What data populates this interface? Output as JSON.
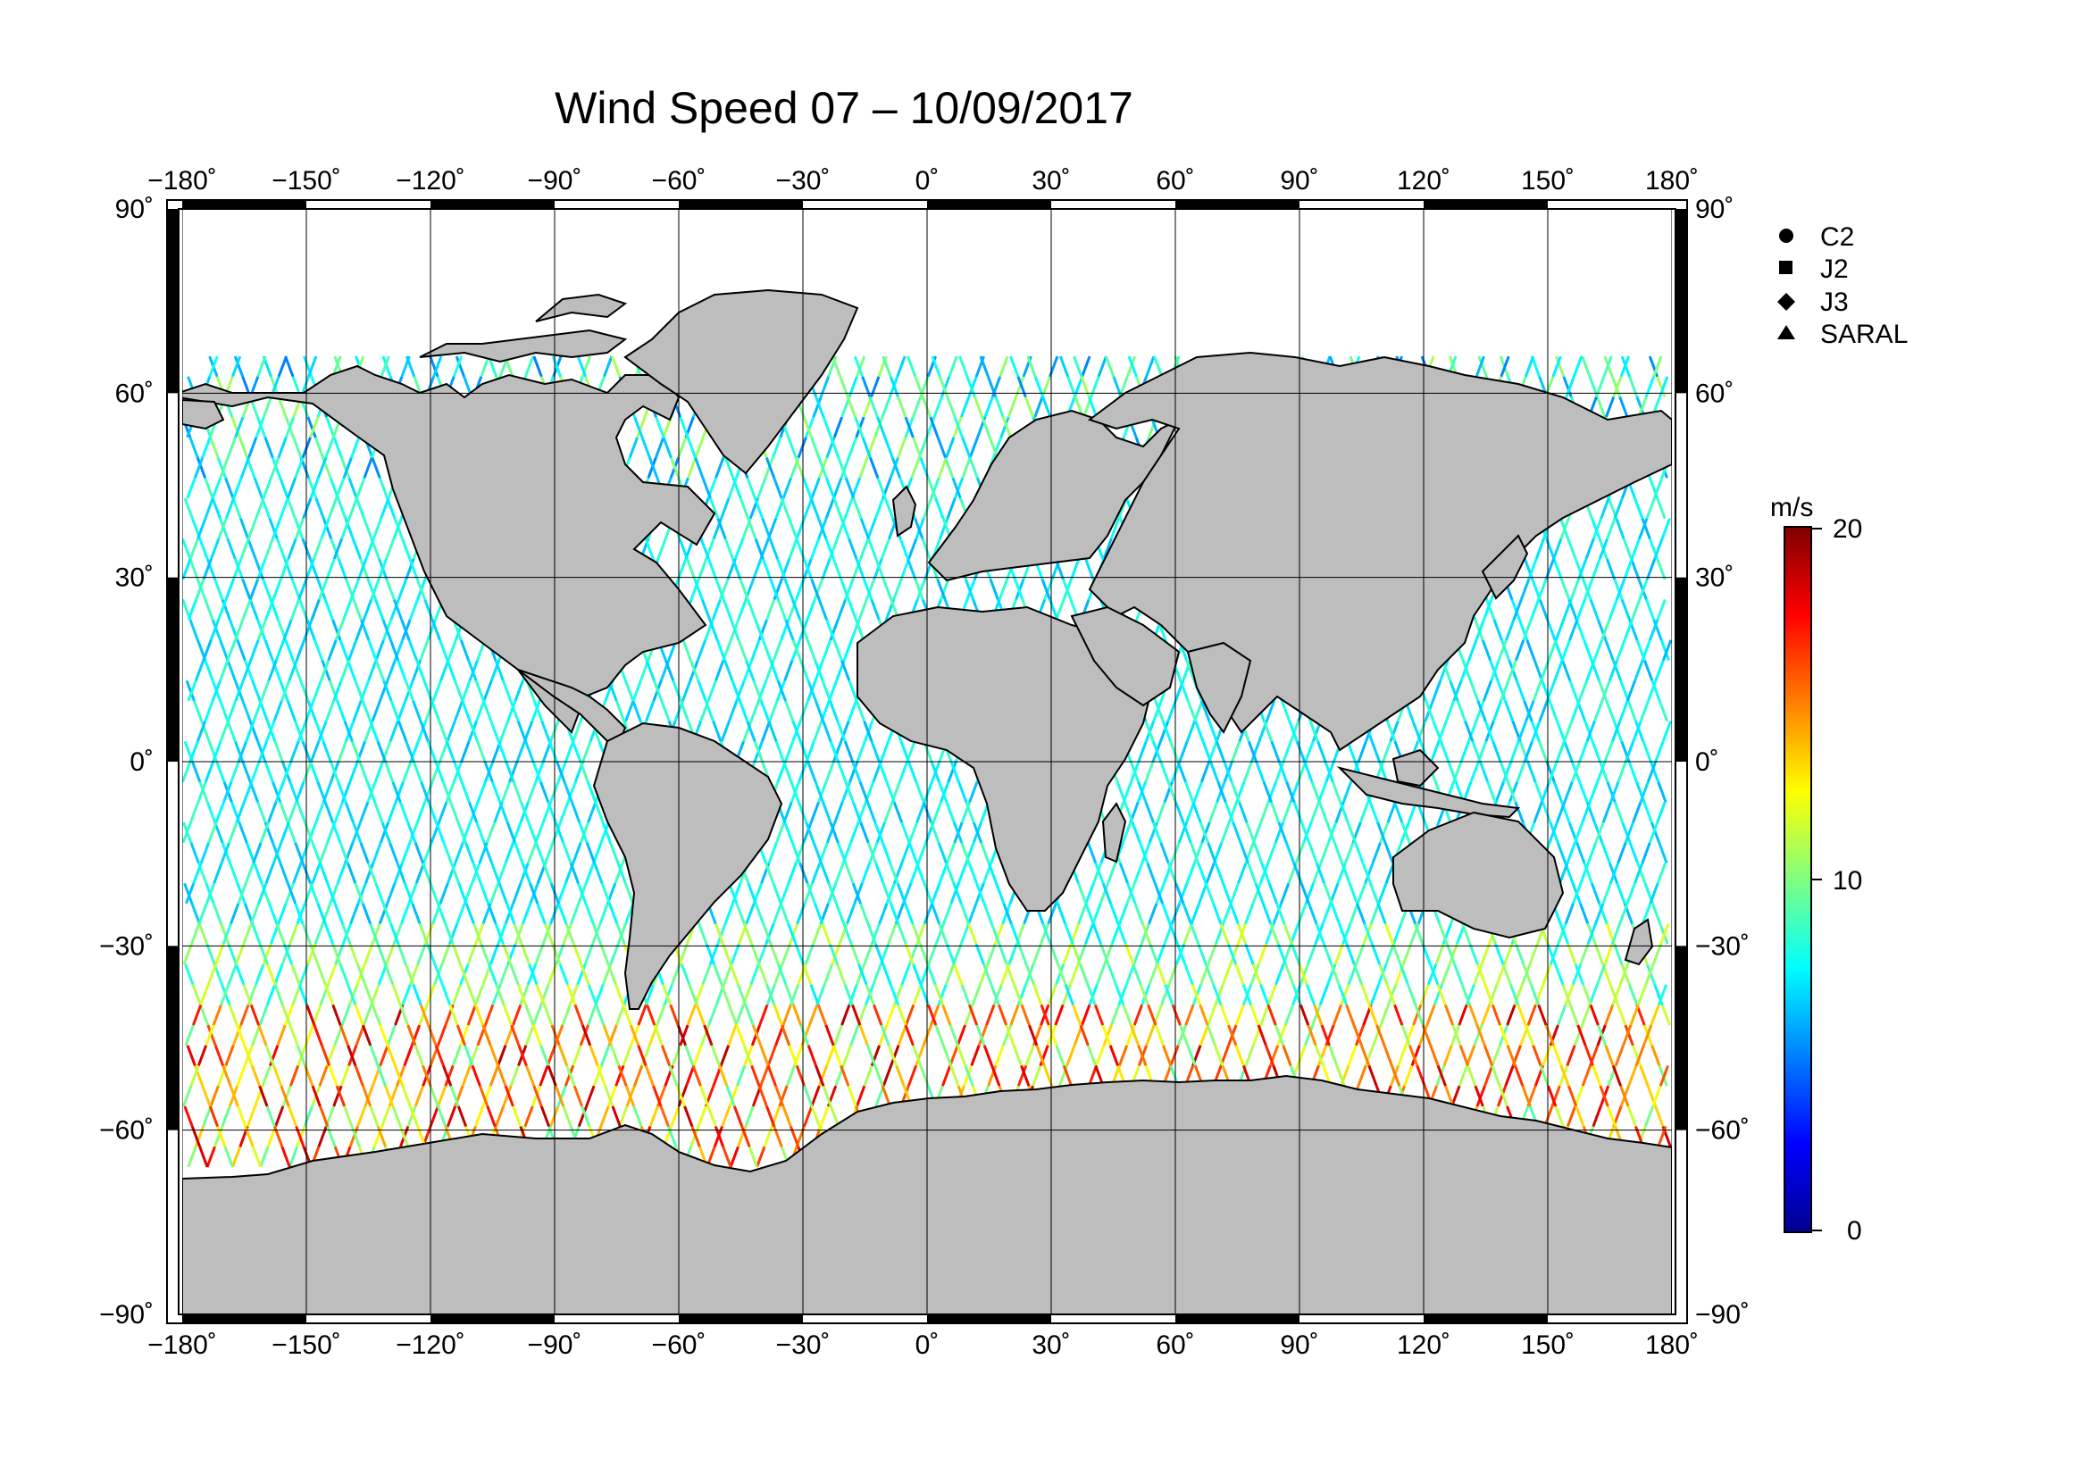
{
  "title": "Wind Speed 07 – 10/09/2017",
  "colors": {
    "land": "#bdbdbd",
    "coast": "#000000",
    "grid": "#000000",
    "background": "#ffffff"
  },
  "axes": {
    "lon_ticks": [
      "−180˚",
      "−150˚",
      "−120˚",
      "−90˚",
      "−60˚",
      "−30˚",
      "0˚",
      "30˚",
      "60˚",
      "90˚",
      "120˚",
      "150˚",
      "180˚"
    ],
    "lat_ticks_left": [
      "90˚",
      "60˚",
      "30˚",
      "0˚",
      "−30˚",
      "−60˚",
      "−90˚"
    ],
    "lat_ticks_right": [
      "90˚",
      "60˚",
      "30˚",
      "0˚",
      "−30˚",
      "−60˚",
      "−90˚"
    ],
    "lon_range": [
      -180,
      180
    ],
    "lat_range": [
      -90,
      90
    ],
    "grid": true
  },
  "legend": {
    "items": [
      {
        "label": "C2",
        "marker": "circle"
      },
      {
        "label": "J2",
        "marker": "square"
      },
      {
        "label": "J3",
        "marker": "diamond"
      },
      {
        "label": "SARAL",
        "marker": "triangle"
      }
    ]
  },
  "colorbar": {
    "unit": "m/s",
    "max_label": "20",
    "mid_label": "10",
    "min_label": "0",
    "range": [
      0,
      20
    ],
    "colormap": [
      "#00008f",
      "#0000ff",
      "#0080ff",
      "#00ffff",
      "#80ff80",
      "#ffff00",
      "#ff8000",
      "#ff0000",
      "#800000"
    ]
  }
}
